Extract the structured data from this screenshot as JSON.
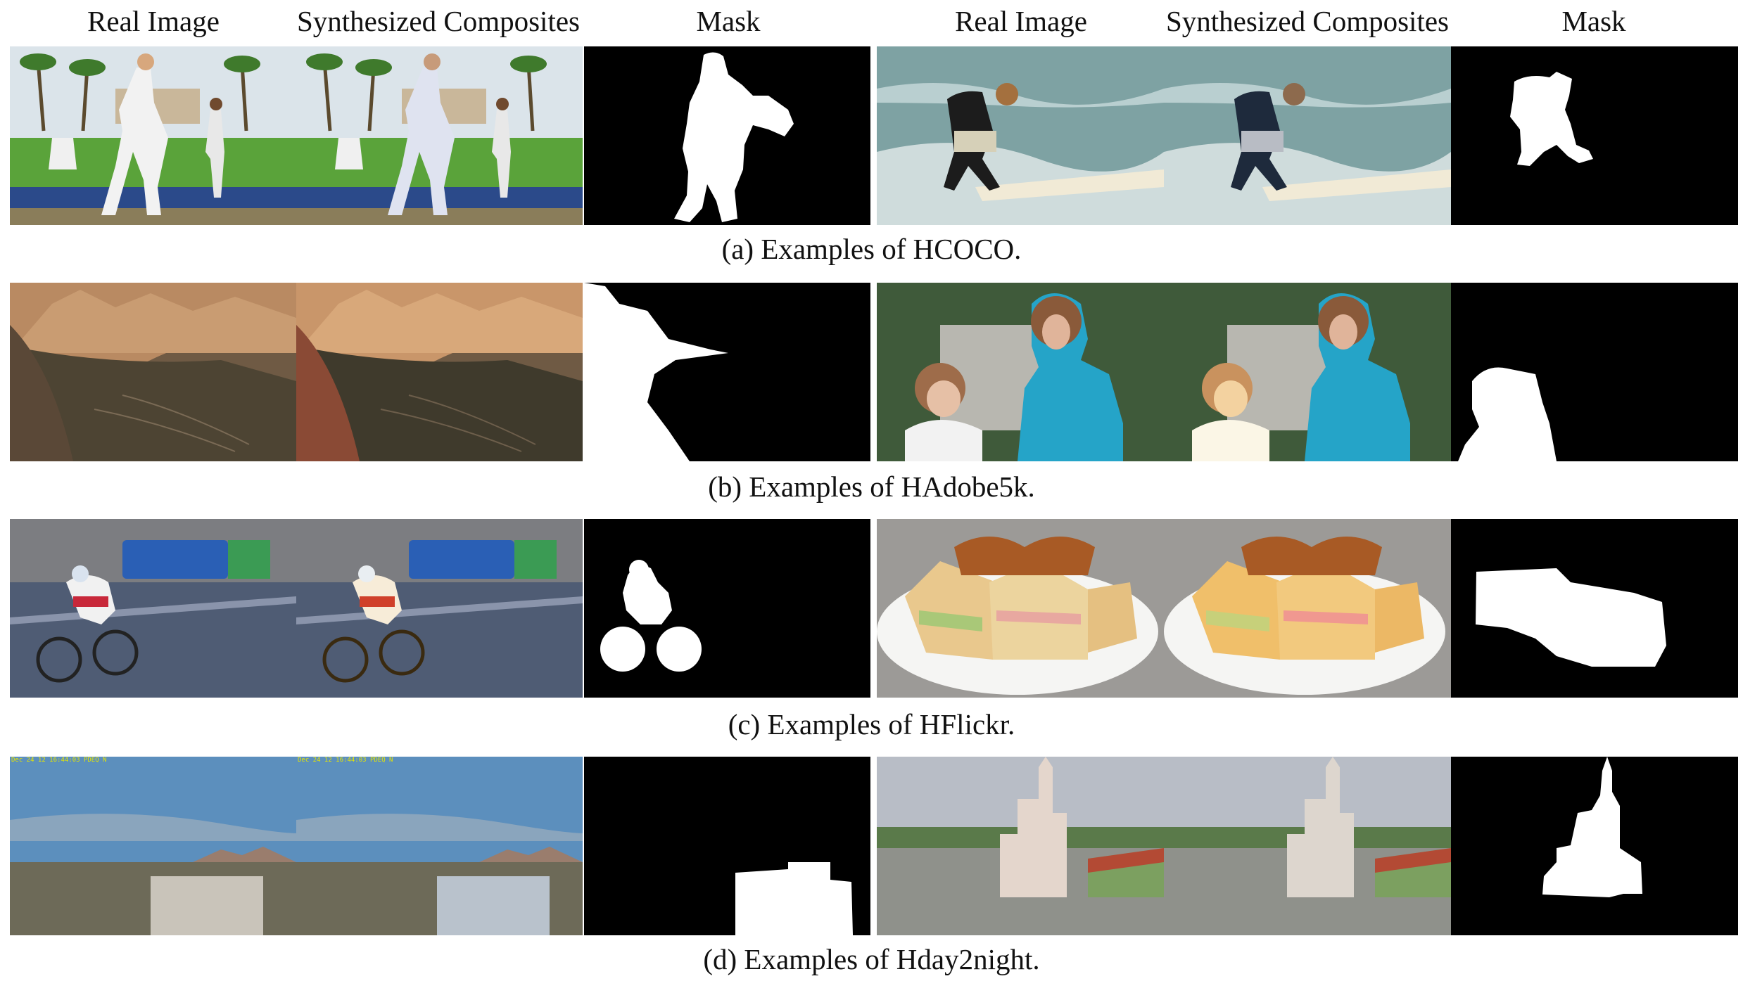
{
  "headers": {
    "left": {
      "real": "Real Image",
      "composite": "Synthesized Composites",
      "mask": "Mask"
    },
    "right": {
      "real": "Real Image",
      "composite": "Synthesized Composites",
      "mask": "Mask"
    }
  },
  "rows": [
    {
      "caption": "(a) Examples of HCOCO.",
      "left_scene": "baseball-players",
      "right_scene": "child-surfing"
    },
    {
      "caption": "(b) Examples of HAdobe5k.",
      "left_scene": "canyon-landscape",
      "right_scene": "two-children"
    },
    {
      "caption": "(c) Examples of HFlickr.",
      "left_scene": "cyclist-street",
      "right_scene": "sandwich-plate"
    },
    {
      "caption": "(d) Examples of Hday2night.",
      "left_scene": "city-skyline",
      "right_scene": "church-square"
    }
  ],
  "timestamp_overlay": "Dec 24 12 16:44:03 PDEQ N",
  "colors": {
    "mask_bg": "#000000",
    "mask_fg": "#ffffff"
  }
}
